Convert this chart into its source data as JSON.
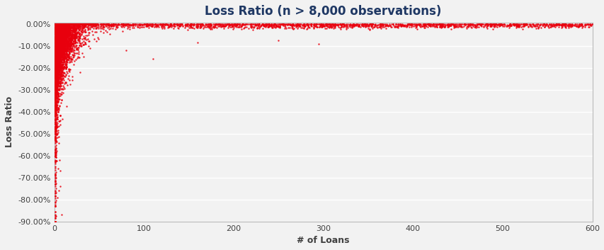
{
  "title": "Loss Ratio (n > 8,000 observations)",
  "xlabel": "# of Loans",
  "ylabel": "Loss Ratio",
  "xlim": [
    0,
    600
  ],
  "ylim": [
    -0.9,
    0.005
  ],
  "yticks": [
    0.0,
    -0.1,
    -0.2,
    -0.3,
    -0.4,
    -0.5,
    -0.6,
    -0.7,
    -0.8,
    -0.9
  ],
  "ytick_labels": [
    "0.00%",
    "-10.00%",
    "-20.00%",
    "-30.00%",
    "-40.00%",
    "-50.00%",
    "-60.00%",
    "-70.00%",
    "-80.00%",
    "-90.00%"
  ],
  "xticks": [
    0,
    100,
    200,
    300,
    400,
    500,
    600
  ],
  "dot_color": "#e8000d",
  "background_color": "#f2f2f2",
  "grid_color": "#ffffff",
  "title_color": "#1f3864",
  "axis_label_color": "#404040",
  "tick_label_color": "#404040",
  "title_fontsize": 12,
  "axis_label_fontsize": 9,
  "tick_fontsize": 8,
  "dot_size": 3,
  "dot_alpha": 0.85,
  "seed": 42,
  "n_main": 8000,
  "n_sparse": 2000
}
